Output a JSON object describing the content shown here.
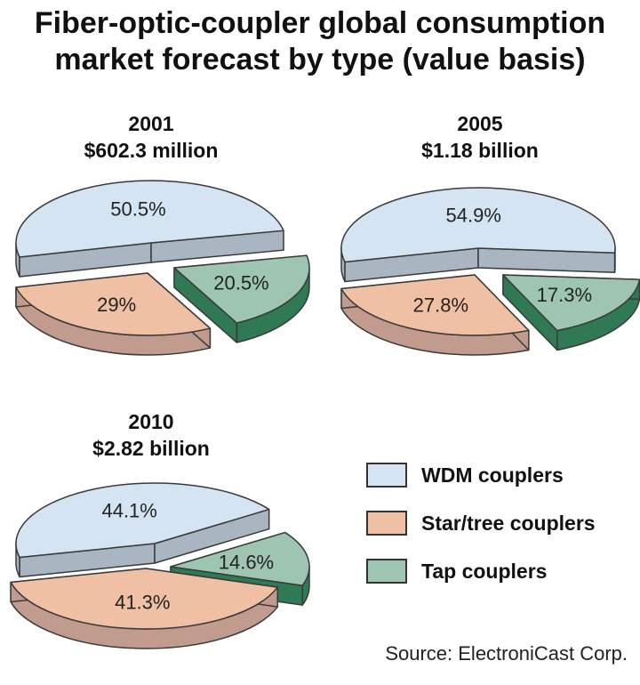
{
  "title_line1": "Fiber-optic-coupler global consumption",
  "title_line2": "market forecast by type (value basis)",
  "source": "Source: ElectroniCast Corp.",
  "colors": {
    "wdm_top": "#d4e4f2",
    "wdm_side": "#a9b6c1",
    "star_top": "#efc0a3",
    "star_side": "#c19c8e",
    "tap_top": "#9ec5b1",
    "tap_side": "#2f7a54",
    "outline": "#3a3a3a"
  },
  "legend": [
    {
      "label": "WDM couplers",
      "color": "#d4e4f2"
    },
    {
      "label": "Star/tree couplers",
      "color": "#efc0a3"
    },
    {
      "label": "Tap couplers",
      "color": "#9ec5b1"
    }
  ],
  "chart_data": [
    {
      "type": "pie",
      "title": "2001",
      "subtitle": "$602.3 million",
      "categories": [
        "WDM couplers",
        "Star/tree couplers",
        "Tap couplers"
      ],
      "values": [
        50.5,
        29,
        20.5
      ],
      "labels": [
        "50.5%",
        "29%",
        "20.5%"
      ]
    },
    {
      "type": "pie",
      "title": "2005",
      "subtitle": "$1.18 billion",
      "categories": [
        "WDM couplers",
        "Star/tree couplers",
        "Tap couplers"
      ],
      "values": [
        54.9,
        27.8,
        17.3
      ],
      "labels": [
        "54.9%",
        "27.8%",
        "17.3%"
      ]
    },
    {
      "type": "pie",
      "title": "2010",
      "subtitle": "$2.82 billion",
      "categories": [
        "WDM couplers",
        "Star/tree couplers",
        "Tap couplers"
      ],
      "values": [
        44.1,
        41.3,
        14.6
      ],
      "labels": [
        "44.1%",
        "41.3%",
        "14.6%"
      ]
    }
  ]
}
